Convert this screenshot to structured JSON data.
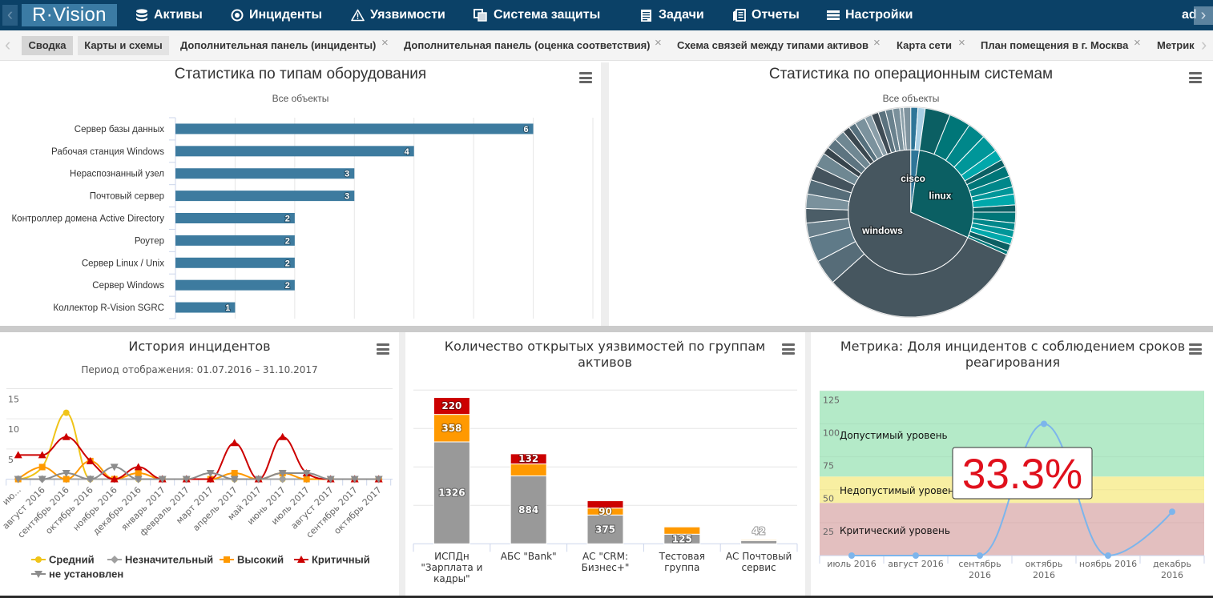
{
  "nav": {
    "logo": "R·Vision",
    "items": [
      {
        "label": "Активы",
        "icon": "database-icon"
      },
      {
        "label": "Инциденты",
        "icon": "target-icon"
      },
      {
        "label": "Уязвимости",
        "icon": "warning-icon"
      },
      {
        "label": "Система защиты",
        "icon": "copy-icon"
      },
      {
        "label": "Задачи",
        "icon": "clipboard-list-icon"
      },
      {
        "label": "Отчеты",
        "icon": "reports-icon"
      },
      {
        "label": "Настройки",
        "icon": "menu-icon"
      }
    ],
    "user": "ad",
    "prev_glyph": "‹",
    "next_glyph": "›"
  },
  "tabs": [
    {
      "label": "Сводка",
      "active": true,
      "closable": false
    },
    {
      "label": "Карты и схемы",
      "active": false,
      "closable": false
    },
    {
      "label": "Дополнительная панель (инциденты)",
      "active": false,
      "closable": true
    },
    {
      "label": "Дополнительная панель (оценка соответствия)",
      "active": false,
      "closable": true
    },
    {
      "label": "Схема связей между типами активов",
      "active": false,
      "closable": true
    },
    {
      "label": "Карта сети",
      "active": false,
      "closable": true
    },
    {
      "label": "План помещения в г. Москва",
      "active": false,
      "closable": true
    },
    {
      "label": "Метрик",
      "active": false,
      "closable": false
    }
  ],
  "tab_close_glyph": "×",
  "tab_prev_glyph": "‹",
  "tab_next_glyph": "›",
  "chart_data": [
    {
      "type": "bar",
      "orientation": "horizontal",
      "title": "Статистика по типам оборудования",
      "subtitle": "Все объекты",
      "categories": [
        "Сервер базы данных",
        "Рабочая станция Windows",
        "Нераспознанный узел",
        "Почтовый сервер",
        "Контроллер домена Active Directory",
        "Роутер",
        "Сервер Linux / Unix",
        "Сервер Windows",
        "Коллектор R-Vision SGRC"
      ],
      "values": [
        6,
        4,
        3,
        3,
        2,
        2,
        2,
        2,
        1
      ],
      "xlim": [
        0,
        7
      ],
      "grid": true,
      "data_labels": true,
      "color": "#3d7b9f"
    },
    {
      "type": "pie",
      "variant": "sunburst",
      "title": "Статистика по операционным системам",
      "subtitle": "Все объекты",
      "series": [
        {
          "name": "cisco",
          "value": 4,
          "color": "#2e7598",
          "children": [
            2,
            2
          ],
          "child_colors": [
            "#2e7598",
            "#a9cfe4"
          ]
        },
        {
          "name": "linux",
          "value": 53,
          "color": "#0b5f63",
          "children": [
            7,
            6,
            5,
            5,
            3,
            2,
            3,
            3,
            2,
            3,
            2,
            3,
            2,
            2,
            2,
            2,
            1
          ],
          "child_colors": [
            "#0b5f63",
            "#007678",
            "#00878a",
            "#009699",
            "#00a8ab",
            "#0b5f63",
            "#007678",
            "#00878a",
            "#009699",
            "#00a8ab",
            "#0b5f63",
            "#007678",
            "#00878a",
            "#009699",
            "#00a8ab",
            "#0b5f63",
            "#007678"
          ]
        },
        {
          "name": "windows",
          "value": 123,
          "color": "#46565f",
          "children": [
            57,
            7,
            7,
            4,
            4,
            4,
            4,
            4,
            4,
            2,
            3,
            3,
            2,
            2,
            3,
            2,
            2,
            2,
            2,
            2,
            1,
            2
          ],
          "child_colors": [
            "#46565f",
            "#566c78",
            "#5f7a88",
            "#687f8b",
            "#4b5d67",
            "#7a919c",
            "#566d79",
            "#44535d",
            "#6e8792",
            "#37444c",
            "#5d7480",
            "#6f8792",
            "#3b4850",
            "#56707d",
            "#7b929d",
            "#8a9ea8",
            "#3f4c55",
            "#5b727e",
            "#6a828e",
            "#7a909b",
            "#8b9fa9",
            "#7f939e"
          ]
        }
      ]
    },
    {
      "type": "line",
      "title": "История инцидентов",
      "subtitle": "Период отображения: 01.07.2016 – 31.10.2017",
      "categories": [
        "июль 2016",
        "август 2016",
        "сентябрь 2016",
        "октябрь 2016",
        "ноябрь 2016",
        "декабрь 2016",
        "январь 2017",
        "февраль 2017",
        "март 2017",
        "апрель 2017",
        "май 2017",
        "июнь 2017",
        "июль 2017",
        "август 2017",
        "сентябрь 2017",
        "октябрь 2017"
      ],
      "tick_labels": [
        "ию...",
        "август 2016",
        "сентябрь 2016",
        "октябрь 2016",
        "ноябрь 2016",
        "декабрь 2016",
        "январь 2017",
        "февраль 2017",
        "март 2017",
        "апрель 2017",
        "май 2017",
        "июнь 2017",
        "июль 2017",
        "август 2017",
        "сентябрь 2017",
        "октябрь 2017"
      ],
      "ylim": [
        0,
        15
      ],
      "yticks": [
        5,
        10,
        15
      ],
      "grid": true,
      "legend": "bottom",
      "series": [
        {
          "name": "Средний",
          "color": "#f0c419",
          "marker": "circle",
          "values": [
            0,
            2,
            11,
            0,
            0,
            0,
            0,
            0,
            0,
            0,
            0,
            0,
            0,
            0,
            0,
            0
          ]
        },
        {
          "name": "Незначительный",
          "color": "#a0a0a0",
          "marker": "diamond",
          "values": [
            0,
            0,
            0,
            0,
            0,
            0,
            0,
            0,
            0,
            0,
            0,
            0,
            0,
            0,
            0,
            0
          ]
        },
        {
          "name": "Высокий",
          "color": "#ff9900",
          "marker": "square",
          "values": [
            0,
            2,
            0,
            3,
            0,
            1,
            0,
            0,
            0,
            1,
            0,
            1,
            0,
            0,
            0,
            0
          ]
        },
        {
          "name": "Критичный",
          "color": "#cc0000",
          "marker": "triangle",
          "values": [
            4,
            4,
            7,
            3,
            0,
            2,
            0,
            0,
            0,
            6,
            0,
            7,
            1,
            0,
            0,
            0
          ]
        },
        {
          "name": "не установлен",
          "color": "#8c8c8c",
          "marker": "triangle-down",
          "values": [
            0,
            0,
            1,
            0,
            2,
            0,
            0,
            0,
            1,
            0,
            0,
            1,
            1,
            0,
            0,
            0
          ]
        }
      ]
    },
    {
      "type": "bar",
      "stacked": true,
      "title": "Количество открытых уязвимостей по группам активов",
      "categories": [
        "ИСПДн \"Зарплата и кадры\"",
        "АБС \"Bank\"",
        "АС \"CRM: Бизнес+\"",
        "Тестовая группа",
        "АС Почтовый сервис"
      ],
      "ylim": [
        0,
        2000
      ],
      "gridlines": [
        500,
        1000,
        1500,
        2000
      ],
      "series": [
        {
          "color": "#999999",
          "values": [
            1326,
            884,
            375,
            125,
            42
          ],
          "data_labels": [
            1326,
            884,
            375,
            125,
            42
          ]
        },
        {
          "color": "#ff9900",
          "values": [
            358,
            155,
            90,
            95,
            12
          ],
          "data_labels": [
            358,
            null,
            90,
            null,
            null
          ]
        },
        {
          "color": "#cc0000",
          "values": [
            220,
            132,
            95,
            0,
            0
          ],
          "data_labels": [
            220,
            132,
            null,
            null,
            null
          ]
        }
      ]
    },
    {
      "type": "line",
      "title": "Метрика: Доля инцидентов с соблюдением сроков реагирования",
      "categories": [
        "июль 2016",
        "август 2016",
        "сентябрь 2016",
        "октябрь 2016",
        "ноябрь 2016",
        "декабрь 2016"
      ],
      "values": [
        0,
        0,
        0,
        100,
        0,
        33.3
      ],
      "ylim": [
        0,
        125
      ],
      "yticks": [
        25,
        50,
        75,
        100,
        125
      ],
      "color": "#7cb5ec",
      "bands": [
        {
          "label": "Критический уровень",
          "from": 0,
          "to": 40,
          "color": "#e3bfbf"
        },
        {
          "label": "Недопустимый уровень",
          "from": 40,
          "to": 60,
          "color": "#f8efa2"
        },
        {
          "label": "Допустимый уровень",
          "from": 60,
          "to": 125,
          "color": "#b4eac8"
        }
      ],
      "current_value_label": "33.3%",
      "current_value_color": "#e0101c"
    }
  ]
}
